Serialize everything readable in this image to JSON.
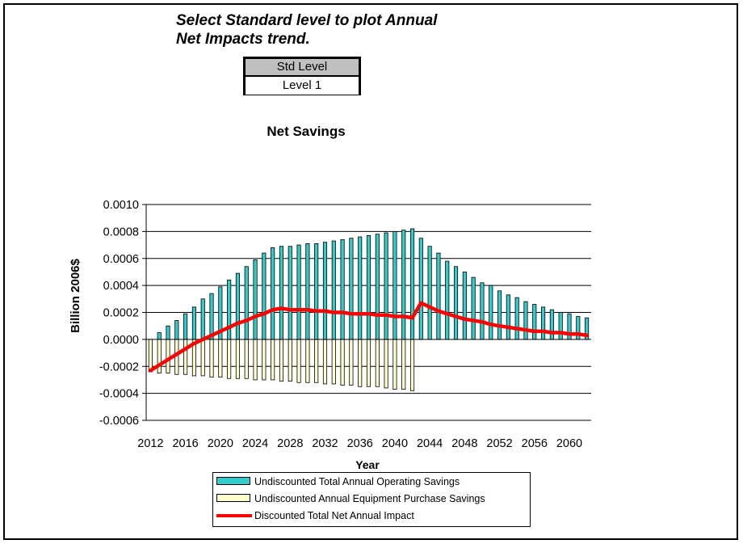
{
  "instructions": {
    "line1": "Select Standard level to plot Annual",
    "line2": "Net Impacts trend."
  },
  "std_level": {
    "header": "Std Level",
    "value": "Level 1"
  },
  "colors": {
    "operating": "#33cccc",
    "equipment": "#ffffcc",
    "net": "#ff0000",
    "grid": "#000000"
  },
  "chart_data": {
    "type": "bar",
    "title": "Net Savings",
    "xlabel": "Year",
    "ylabel": "Billion 2006$",
    "ylim": [
      -0.0006,
      0.001
    ],
    "yticks": [
      "0.0010",
      "0.0008",
      "0.0006",
      "0.0004",
      "0.0002",
      "0.0000",
      "-0.0002",
      "-0.0004",
      "-0.0006"
    ],
    "ytick_values": [
      0.001,
      0.0008,
      0.0006,
      0.0004,
      0.0002,
      0.0,
      -0.0002,
      -0.0004,
      -0.0006
    ],
    "xticks": [
      "2012",
      "2016",
      "2020",
      "2024",
      "2028",
      "2032",
      "2036",
      "2040",
      "2044",
      "2048",
      "2052",
      "2056",
      "2060"
    ],
    "grid": "horizontal",
    "legend_position": "bottom",
    "x": [
      2012,
      2013,
      2014,
      2015,
      2016,
      2017,
      2018,
      2019,
      2020,
      2021,
      2022,
      2023,
      2024,
      2025,
      2026,
      2027,
      2028,
      2029,
      2030,
      2031,
      2032,
      2033,
      2034,
      2035,
      2036,
      2037,
      2038,
      2039,
      2040,
      2041,
      2042,
      2043,
      2044,
      2045,
      2046,
      2047,
      2048,
      2049,
      2050,
      2051,
      2052,
      2053,
      2054,
      2055,
      2056,
      2057,
      2058,
      2059,
      2060,
      2061,
      2062
    ],
    "series": [
      {
        "name": "Undiscounted Total Annual Operating Savings",
        "kind": "bar",
        "values": [
          0.0,
          5e-05,
          0.0001,
          0.00014,
          0.00019,
          0.00024,
          0.0003,
          0.00034,
          0.00039,
          0.00044,
          0.00049,
          0.00054,
          0.00059,
          0.00064,
          0.00068,
          0.00069,
          0.00069,
          0.0007,
          0.00071,
          0.00071,
          0.00072,
          0.00073,
          0.00074,
          0.00075,
          0.00076,
          0.00077,
          0.00078,
          0.00079,
          0.0008,
          0.00081,
          0.00082,
          0.00075,
          0.00069,
          0.00064,
          0.00058,
          0.00054,
          0.0005,
          0.00046,
          0.00042,
          0.0004,
          0.00036,
          0.00033,
          0.00031,
          0.00028,
          0.00026,
          0.00024,
          0.00022,
          0.0002,
          0.00019,
          0.00017,
          0.00016
        ]
      },
      {
        "name": "Undiscounted Annual Equipment Purchase Savings",
        "kind": "bar",
        "values": [
          -0.00024,
          -0.00025,
          -0.00025,
          -0.00026,
          -0.00026,
          -0.00027,
          -0.00027,
          -0.00028,
          -0.00028,
          -0.00029,
          -0.00029,
          -0.00029,
          -0.0003,
          -0.0003,
          -0.0003,
          -0.00031,
          -0.00031,
          -0.00032,
          -0.00032,
          -0.00032,
          -0.00033,
          -0.00033,
          -0.00034,
          -0.00034,
          -0.00035,
          -0.00035,
          -0.00035,
          -0.00036,
          -0.00037,
          -0.00037,
          -0.00038,
          0,
          0,
          0,
          0,
          0,
          0,
          0,
          0,
          0,
          0,
          0,
          0,
          0,
          0,
          0,
          0,
          0,
          0,
          0,
          0
        ]
      },
      {
        "name": "Discounted Total Net Annual Impact",
        "kind": "line",
        "values": [
          -0.00023,
          -0.00019,
          -0.00015,
          -0.00011,
          -7e-05,
          -3e-05,
          0.0,
          3e-05,
          6e-05,
          9e-05,
          0.00012,
          0.00014,
          0.00017,
          0.00019,
          0.00022,
          0.00023,
          0.00022,
          0.00022,
          0.00022,
          0.00021,
          0.00021,
          0.0002,
          0.0002,
          0.00019,
          0.00019,
          0.00019,
          0.00018,
          0.00018,
          0.00017,
          0.00017,
          0.00016,
          0.00027,
          0.00024,
          0.00021,
          0.00019,
          0.00017,
          0.00015,
          0.00014,
          0.00013,
          0.00011,
          0.0001,
          9e-05,
          8e-05,
          7e-05,
          6e-05,
          6e-05,
          5e-05,
          5e-05,
          4e-05,
          4e-05,
          3e-05
        ]
      }
    ]
  }
}
